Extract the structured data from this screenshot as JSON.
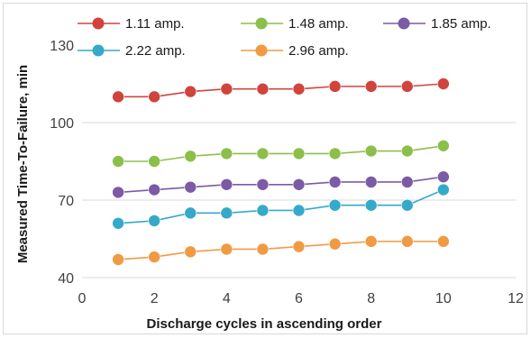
{
  "chart_data": {
    "type": "line",
    "title": "",
    "xlabel": "Discharge cycles in ascending order",
    "ylabel": "Measured Time-To-Failure, min",
    "xlim": [
      0,
      12
    ],
    "ylim": [
      40,
      145
    ],
    "x_ticks": [
      0,
      2,
      4,
      6,
      8,
      10,
      12
    ],
    "y_ticks": [
      40,
      70,
      100,
      130
    ],
    "grid": "horizontal",
    "legend_position": "top",
    "x": [
      1,
      2,
      3,
      4,
      5,
      6,
      7,
      8,
      9,
      10
    ],
    "series": [
      {
        "name": "1.11 amp.",
        "color": "#d0443c",
        "values": [
          110,
          110,
          112,
          113,
          113,
          113,
          114,
          114,
          114,
          115
        ]
      },
      {
        "name": "1.48 amp.",
        "color": "#8cbf4a",
        "values": [
          85,
          85,
          87,
          88,
          88,
          88,
          88,
          89,
          89,
          91
        ]
      },
      {
        "name": "1.85 amp.",
        "color": "#7b5aa6",
        "values": [
          73,
          74,
          75,
          76,
          76,
          76,
          77,
          77,
          77,
          79
        ]
      },
      {
        "name": "2.22 amp.",
        "color": "#35a9c9",
        "values": [
          61,
          62,
          65,
          65,
          66,
          66,
          68,
          68,
          68,
          74
        ]
      },
      {
        "name": "2.96 amp.",
        "color": "#f19a44",
        "values": [
          47,
          48,
          50,
          51,
          51,
          52,
          53,
          54,
          54,
          54
        ]
      }
    ]
  }
}
